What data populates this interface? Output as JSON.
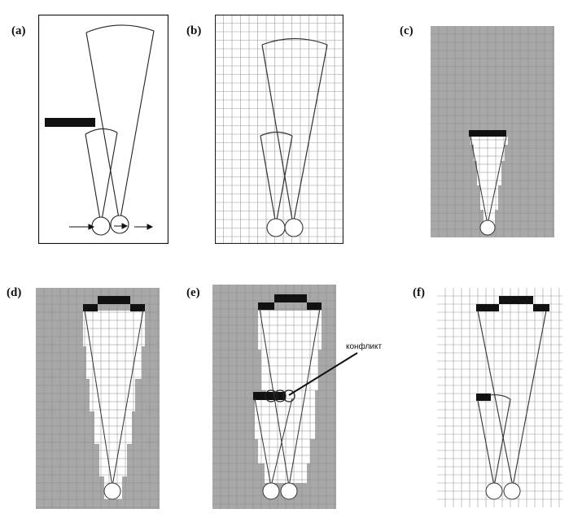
{
  "figure": {
    "panels": [
      {
        "id": "a",
        "label": "(a)",
        "style": "plain"
      },
      {
        "id": "b",
        "label": "(b)",
        "style": "grid"
      },
      {
        "id": "c",
        "label": "(c)",
        "style": "occupancy"
      },
      {
        "id": "d",
        "label": "(d)",
        "style": "occupancy"
      },
      {
        "id": "e",
        "label": "(e)",
        "style": "occupancy",
        "annotation": "конфликт"
      },
      {
        "id": "f",
        "label": "(f)",
        "style": "grid"
      }
    ]
  },
  "colors": {
    "occupied": "#111111",
    "unknown": "#a8a8a8",
    "free": "#ffffff",
    "grid_line": "#888888",
    "beam": "#333333"
  }
}
